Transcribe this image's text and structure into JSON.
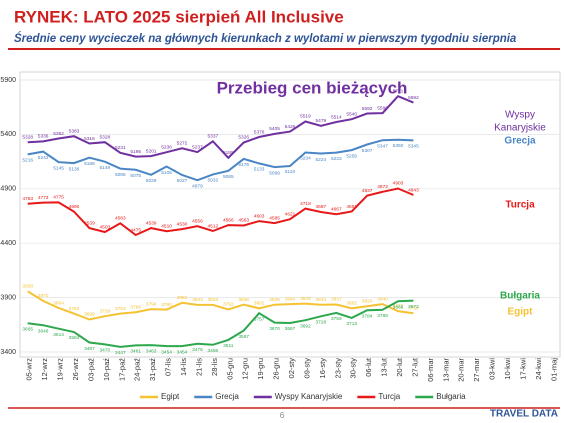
{
  "chart_data": {
    "type": "line",
    "title": "RYNEK: LATO 2025 sierpień All Inclusive",
    "subtitle": "Średnie ceny wycieczek na głównych kierunkach z wylotami w pierwszym tygodniu sierpnia",
    "chart_title": "Przebieg cen bieżących",
    "categories": [
      "05-wrz",
      "12-wrz",
      "19-wrz",
      "26-wrz",
      "03-paź",
      "10-paź",
      "17-paź",
      "24-paź",
      "31-paź",
      "07-lis",
      "14-lis",
      "21-lis",
      "28-lis",
      "05-gru",
      "12-gru",
      "19-gru",
      "26-gru",
      "02-sty",
      "09-sty",
      "16-sty",
      "23-sty",
      "30-sty",
      "06-lut",
      "13-lut",
      "20-lut",
      "27-lut",
      "06-mar",
      "13-mar",
      "20-mar",
      "27-mar",
      "03-kwi",
      "10-kwi",
      "17-kwi",
      "24-kwi",
      "01-maj"
    ],
    "ylim": [
      3400,
      5900
    ],
    "yticks": [
      3400,
      3900,
      4400,
      4900,
      5400,
      5900
    ],
    "grid": true,
    "legend": "bottom",
    "series": [
      {
        "name": "Egipt",
        "color": "#f5c232",
        "values": [
          3958,
          3870,
          3804,
          3753,
          3699,
          3729,
          3753,
          3766,
          3794,
          3790,
          3852,
          3833,
          3833,
          3792,
          3836,
          3802,
          3835,
          3840,
          3845,
          3834,
          3837,
          3802,
          3820,
          3840,
          3776,
          3756,
          null,
          null,
          null,
          null,
          null,
          null,
          null,
          null,
          null
        ]
      },
      {
        "name": "Grecja",
        "color": "#4a86c5",
        "values": [
          5216,
          5242,
          5145,
          5136,
          5186,
          5149,
          5086,
          5075,
          5029,
          5105,
          5027,
          4979,
          5032,
          5065,
          5175,
          5133,
          5099,
          5110,
          5234,
          5224,
          5233,
          5256,
          5307,
          5347,
          5350,
          5345,
          null,
          null,
          null,
          null,
          null,
          null,
          null,
          null,
          null
        ]
      },
      {
        "name": "Wyspy Kanaryjskie",
        "color": "#7030a0",
        "values": [
          5328,
          5336,
          5362,
          5383,
          5316,
          5328,
          5231,
          5196,
          5201,
          5236,
          5272,
          5237,
          5337,
          5185,
          5326,
          5376,
          5405,
          5426,
          5519,
          5479,
          5514,
          5540,
          5592,
          5596,
          5751,
          5692,
          null,
          null,
          null,
          null,
          null,
          null,
          null,
          null,
          null
        ]
      },
      {
        "name": "Turcja",
        "color": "#e81818",
        "values": [
          4763,
          4773,
          4775,
          4690,
          4539,
          4503,
          4583,
          4475,
          4539,
          4510,
          4530,
          4556,
          4512,
          4566,
          4563,
          4603,
          4585,
          4621,
          4718,
          4687,
          4667,
          4691,
          4837,
          4872,
          4903,
          4843,
          null,
          null,
          null,
          null,
          null,
          null,
          null,
          null,
          null
        ]
      },
      {
        "name": "Bułgaria",
        "color": "#2ea84c",
        "values": [
          3665,
          3646,
          3614,
          3584,
          3487,
          3470,
          3447,
          3461,
          3463,
          3454,
          3454,
          3476,
          3466,
          3511,
          3597,
          3757,
          3670,
          3667,
          3692,
          3728,
          3759,
          3713,
          3784,
          3788,
          3866,
          3872,
          null,
          null,
          null,
          null,
          null,
          null,
          null,
          null,
          null
        ]
      }
    ],
    "annotations": [
      "Wyspy",
      "Kanaryjskie",
      "Grecja",
      "Turcja",
      "Bułgaria",
      "Egipt"
    ]
  },
  "footer": {
    "page": "6",
    "logo": "TRAVEL DATA"
  }
}
